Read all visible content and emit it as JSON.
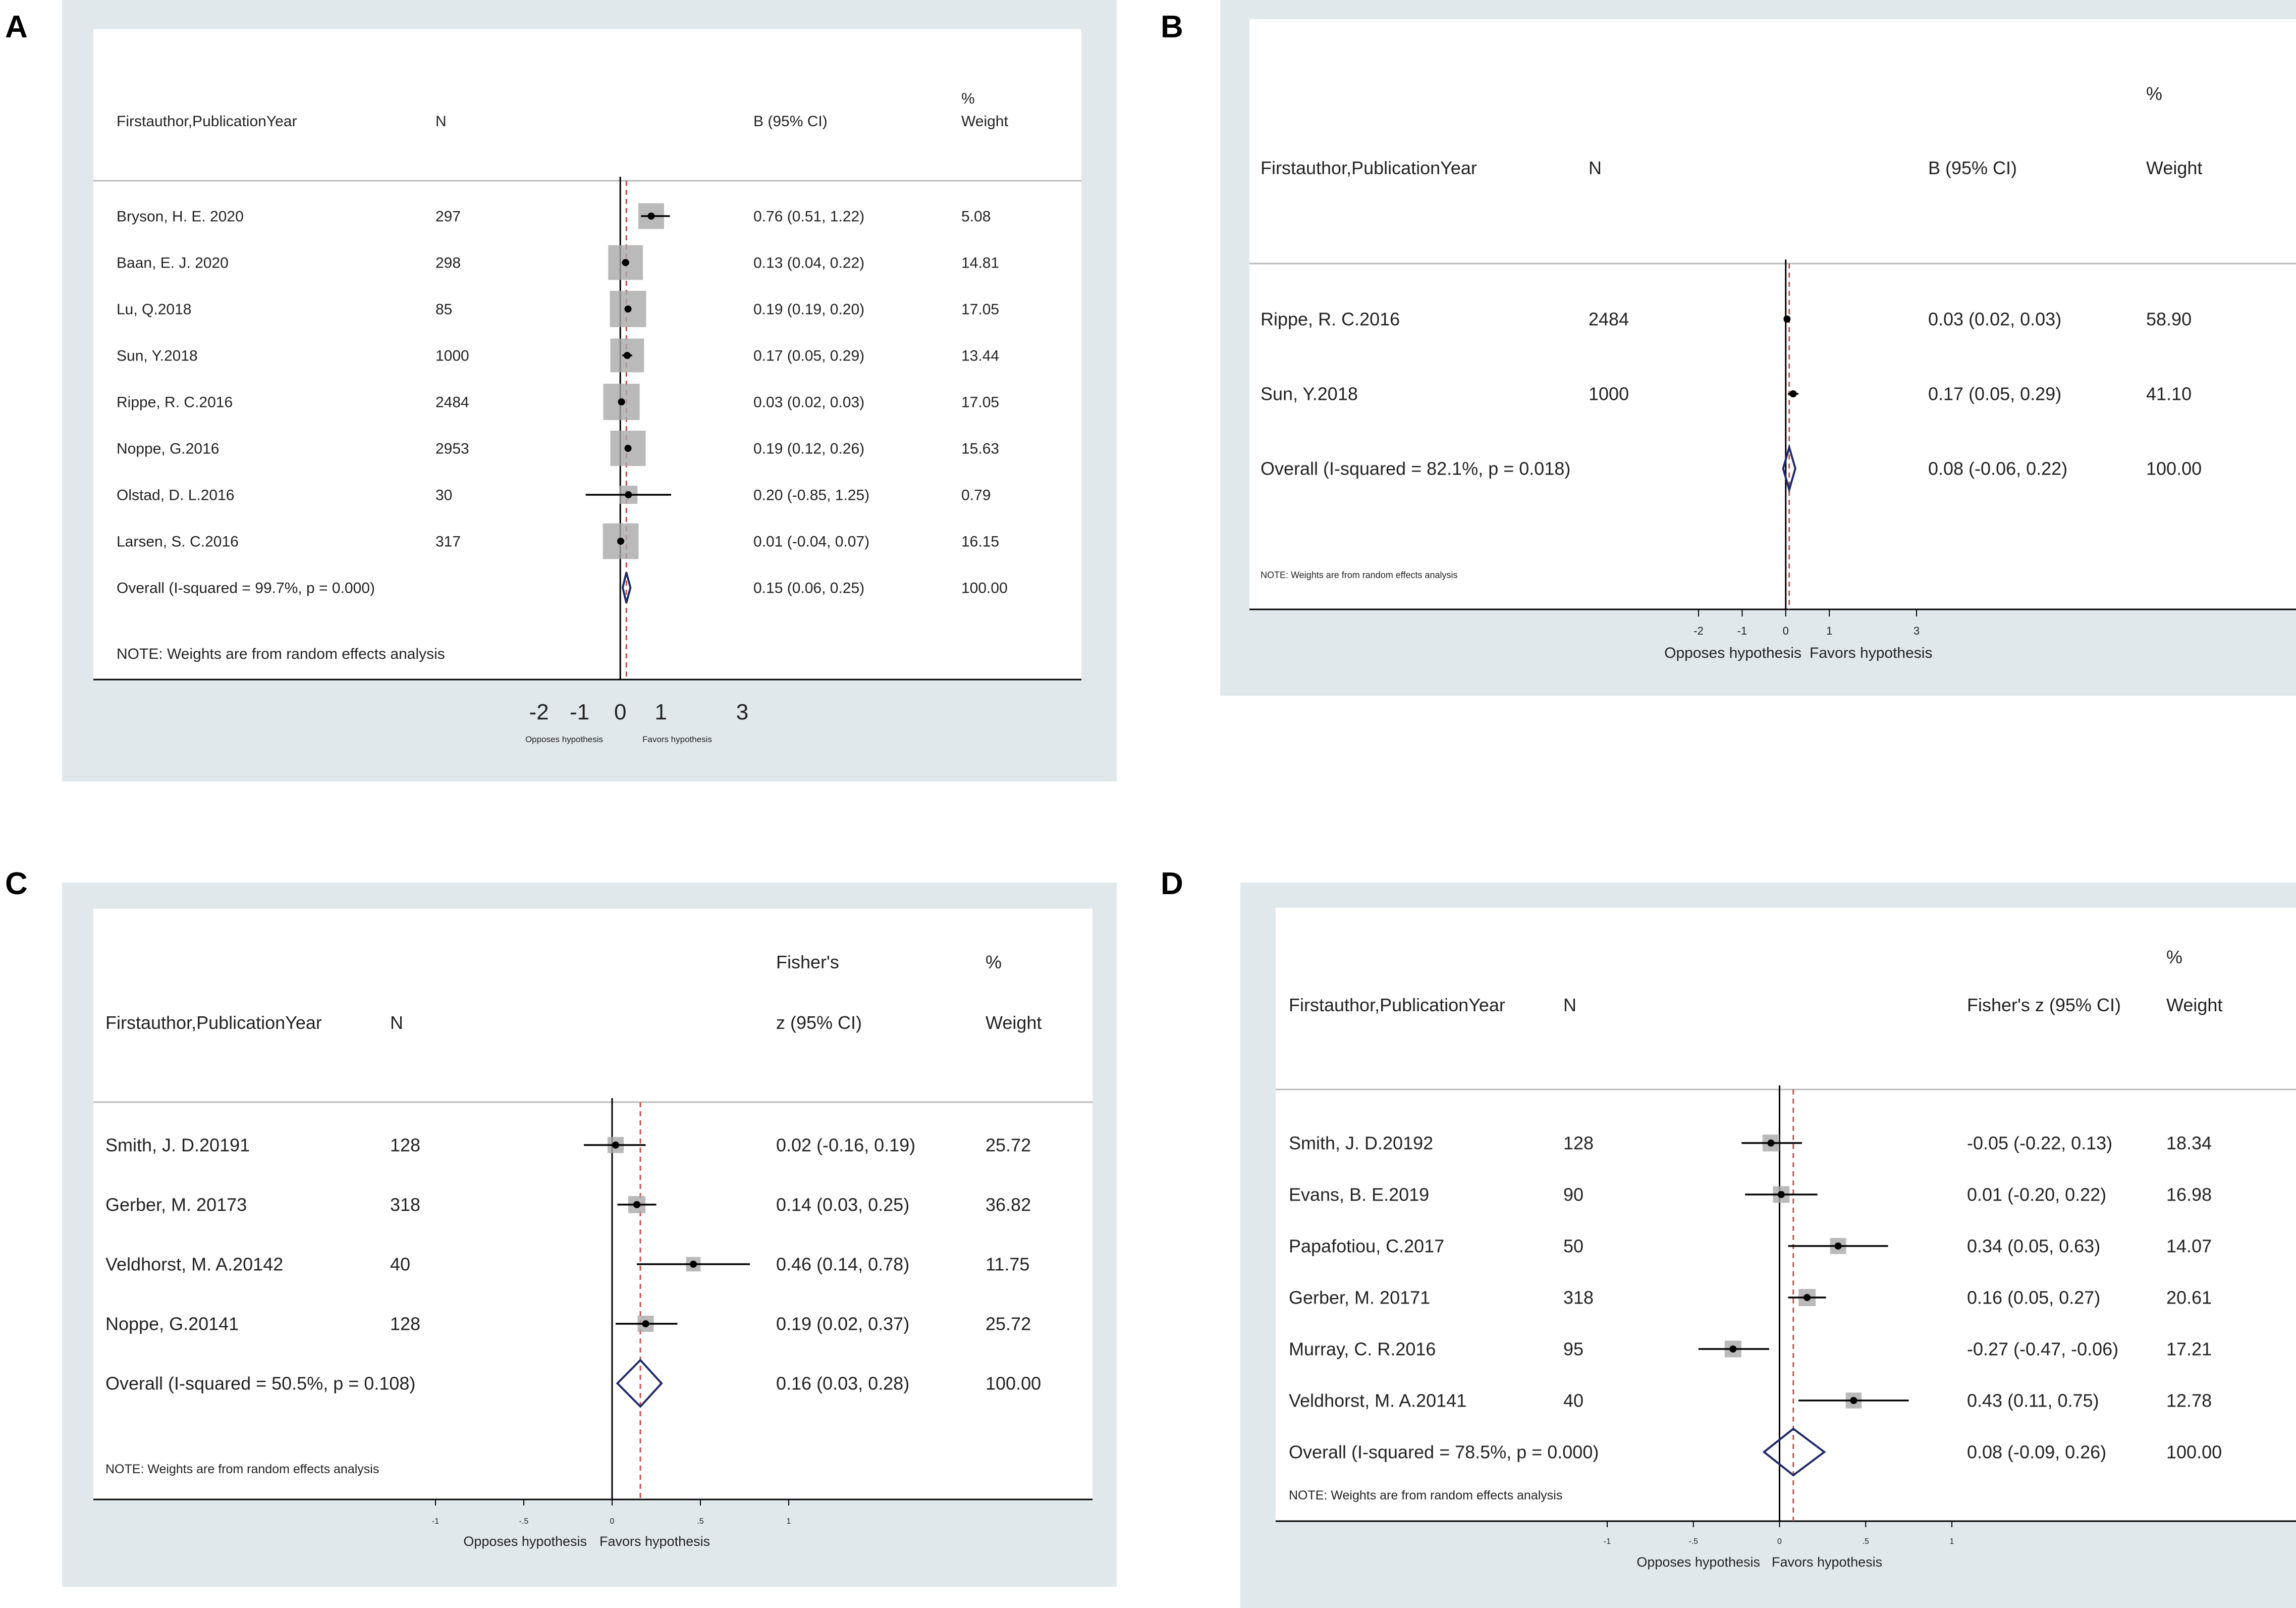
{
  "chart_data": [
    {
      "type": "forest",
      "panel": "A",
      "headers": {
        "study": "Firstauthor,PublicationYear",
        "n": "N",
        "effect": [
          "B (95% CI)"
        ],
        "weight": [
          "%",
          "Weight"
        ]
      },
      "studies": [
        {
          "label": "Bryson, H. E. 2020",
          "n": "297",
          "est": 0.76,
          "lo": 0.51,
          "hi": 1.22,
          "ci_text": "0.76 (0.51, 1.22)",
          "weight": "5.08"
        },
        {
          "label": "Baan, E. J. 2020",
          "n": "298",
          "est": 0.13,
          "lo": 0.04,
          "hi": 0.22,
          "ci_text": "0.13 (0.04, 0.22)",
          "weight": "14.81"
        },
        {
          "label": "Lu, Q.2018",
          "n": "85",
          "est": 0.19,
          "lo": 0.19,
          "hi": 0.2,
          "ci_text": "0.19 (0.19, 0.20)",
          "weight": "17.05"
        },
        {
          "label": "Sun, Y.2018",
          "n": "1000",
          "est": 0.17,
          "lo": 0.05,
          "hi": 0.29,
          "ci_text": "0.17 (0.05, 0.29)",
          "weight": "13.44"
        },
        {
          "label": "Rippe, R. C.2016",
          "n": "2484",
          "est": 0.03,
          "lo": 0.02,
          "hi": 0.03,
          "ci_text": "0.03 (0.02, 0.03)",
          "weight": "17.05"
        },
        {
          "label": "Noppe, G.2016",
          "n": "2953",
          "est": 0.19,
          "lo": 0.12,
          "hi": 0.26,
          "ci_text": "0.19 (0.12, 0.26)",
          "weight": "15.63"
        },
        {
          "label": "Olstad, D. L.2016",
          "n": "30",
          "est": 0.2,
          "lo": -0.85,
          "hi": 1.25,
          "ci_text": "0.20 (-0.85, 1.25)",
          "weight": "0.79"
        },
        {
          "label": "Larsen, S. C.2016",
          "n": "317",
          "est": 0.01,
          "lo": -0.04,
          "hi": 0.07,
          "ci_text": "0.01 (-0.04, 0.07)",
          "weight": "16.15"
        }
      ],
      "overall": {
        "label": "Overall  (I-squared = 99.7%, p = 0.000)",
        "est": 0.15,
        "lo": 0.06,
        "hi": 0.25,
        "ci_text": "0.15 (0.06, 0.25)",
        "weight": "100.00"
      },
      "note": "NOTE: Weights are from random effects analysis",
      "x_ticks": [
        -2,
        -1,
        0,
        1,
        3
      ],
      "x_tick_labels": [
        "-2",
        "-1",
        "0",
        "1",
        "3"
      ],
      "x_labels": {
        "left": "Opposes hypothesis",
        "right": "Favors hypothesis"
      }
    },
    {
      "type": "forest",
      "panel": "B",
      "headers": {
        "study": "Firstauthor,PublicationYear",
        "n": "N",
        "effect": [
          "B (95% CI)"
        ],
        "weight": [
          "%",
          "Weight"
        ]
      },
      "studies": [
        {
          "label": "Rippe, R. C.2016",
          "n": "2484",
          "est": 0.03,
          "lo": 0.02,
          "hi": 0.03,
          "ci_text": "0.03 (0.02, 0.03)",
          "weight": "58.90"
        },
        {
          "label": "Sun, Y.2018",
          "n": "1000",
          "est": 0.17,
          "lo": 0.05,
          "hi": 0.29,
          "ci_text": "0.17 (0.05, 0.29)",
          "weight": "41.10"
        }
      ],
      "overall": {
        "label": "Overall  (I-squared = 82.1%, p = 0.018)",
        "est": 0.08,
        "lo": -0.06,
        "hi": 0.22,
        "ci_text": "0.08 (-0.06, 0.22)",
        "weight": "100.00"
      },
      "note": "NOTE: Weights are from random effects analysis",
      "x_ticks": [
        -2,
        -1,
        0,
        1,
        3
      ],
      "x_tick_labels": [
        "-2",
        "-1",
        "0",
        "1",
        "3"
      ],
      "x_labels": {
        "left": "Opposes hypothesis",
        "right": "Favors hypothesis"
      }
    },
    {
      "type": "forest",
      "panel": "C",
      "headers": {
        "study": "Firstauthor,PublicationYear",
        "n": "N",
        "effect": [
          "Fisher's",
          "z (95% CI)"
        ],
        "weight": [
          "%",
          "Weight"
        ]
      },
      "studies": [
        {
          "label": "Smith, J. D.20191",
          "n": "128",
          "est": 0.02,
          "lo": -0.16,
          "hi": 0.19,
          "ci_text": "0.02 (-0.16, 0.19)",
          "weight": "25.72"
        },
        {
          "label": "Gerber, M. 20173",
          "n": "318",
          "est": 0.14,
          "lo": 0.03,
          "hi": 0.25,
          "ci_text": "0.14 (0.03, 0.25)",
          "weight": "36.82"
        },
        {
          "label": "Veldhorst, M. A.20142",
          "n": "40",
          "est": 0.46,
          "lo": 0.14,
          "hi": 0.78,
          "ci_text": "0.46 (0.14, 0.78)",
          "weight": "11.75"
        },
        {
          "label": "Noppe, G.20141",
          "n": "128",
          "est": 0.19,
          "lo": 0.02,
          "hi": 0.37,
          "ci_text": "0.19 (0.02, 0.37)",
          "weight": "25.72"
        }
      ],
      "overall": {
        "label": "Overall  (I-squared = 50.5%, p = 0.108)",
        "est": 0.16,
        "lo": 0.03,
        "hi": 0.28,
        "ci_text": "0.16 (0.03, 0.28)",
        "weight": "100.00"
      },
      "note": "NOTE: Weights are from random effects analysis",
      "x_ticks": [
        -1,
        -0.5,
        0,
        0.5,
        1
      ],
      "x_tick_labels": [
        "-1",
        "-.5",
        "0",
        ".5",
        "1"
      ],
      "x_labels": {
        "left": "Opposes hypothesis",
        "right": "Favors hypothesis"
      }
    },
    {
      "type": "forest",
      "panel": "D",
      "headers": {
        "study": "Firstauthor,PublicationYear",
        "n": "N",
        "effect": [
          "Fisher's z (95% CI)"
        ],
        "weight": [
          "%",
          "Weight"
        ]
      },
      "studies": [
        {
          "label": "Smith, J. D.20192",
          "n": "128",
          "est": -0.05,
          "lo": -0.22,
          "hi": 0.13,
          "ci_text": "-0.05 (-0.22, 0.13)",
          "weight": "18.34"
        },
        {
          "label": "Evans, B. E.2019",
          "n": "90",
          "est": 0.01,
          "lo": -0.2,
          "hi": 0.22,
          "ci_text": "0.01 (-0.20, 0.22)",
          "weight": "16.98"
        },
        {
          "label": "Papafotiou, C.2017",
          "n": "50",
          "est": 0.34,
          "lo": 0.05,
          "hi": 0.63,
          "ci_text": "0.34 (0.05, 0.63)",
          "weight": "14.07"
        },
        {
          "label": "Gerber, M. 20171",
          "n": "318",
          "est": 0.16,
          "lo": 0.05,
          "hi": 0.27,
          "ci_text": "0.16 (0.05, 0.27)",
          "weight": "20.61"
        },
        {
          "label": "Murray, C. R.2016",
          "n": "95",
          "est": -0.27,
          "lo": -0.47,
          "hi": -0.06,
          "ci_text": "-0.27 (-0.47, -0.06)",
          "weight": "17.21"
        },
        {
          "label": "Veldhorst, M. A.20141",
          "n": "40",
          "est": 0.43,
          "lo": 0.11,
          "hi": 0.75,
          "ci_text": "0.43 (0.11, 0.75)",
          "weight": "12.78"
        }
      ],
      "overall": {
        "label": "Overall  (I-squared = 78.5%, p = 0.000)",
        "est": 0.08,
        "lo": -0.09,
        "hi": 0.26,
        "ci_text": "0.08 (-0.09, 0.26)",
        "weight": "100.00"
      },
      "note": "NOTE: Weights are from random effects analysis",
      "x_ticks": [
        -1,
        -0.5,
        0,
        0.5,
        1
      ],
      "x_tick_labels": [
        "-1",
        "-.5",
        "0",
        ".5",
        "1"
      ],
      "x_labels": {
        "left": "Opposes hypothesis",
        "right": "Favors hypothesis"
      }
    }
  ]
}
